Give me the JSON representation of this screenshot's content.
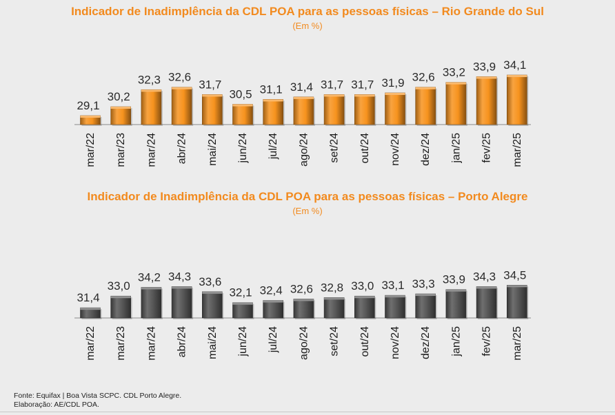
{
  "charts": [
    {
      "title": "Indicador de Inadimplência da CDL POA para as pessoas físicas – Rio Grande do Sul",
      "subtitle": "(Em %)"
    },
    {
      "title": "Indicador de Inadimplência da CDL POA para as pessoas físicas – Porto Alegre",
      "subtitle": "(Em %)"
    }
  ],
  "chart_data": [
    {
      "type": "bar",
      "title": "Indicador de Inadimplência da CDL POA para as pessoas físicas – Rio Grande do Sul",
      "subtitle": "(Em %)",
      "categories": [
        "mar/22",
        "mar/23",
        "mar/24",
        "abr/24",
        "mai/24",
        "jun/24",
        "jul/24",
        "ago/24",
        "set/24",
        "out/24",
        "nov/24",
        "dez/24",
        "jan/25",
        "fev/25",
        "mar/25"
      ],
      "values": [
        29.1,
        30.2,
        32.3,
        32.6,
        31.7,
        30.5,
        31.1,
        31.4,
        31.7,
        31.7,
        31.9,
        32.6,
        33.2,
        33.9,
        34.1
      ],
      "value_labels": [
        "29,1",
        "30,2",
        "32,3",
        "32,6",
        "31,7",
        "30,5",
        "31,1",
        "31,4",
        "31,7",
        "31,7",
        "31,9",
        "32,6",
        "33,2",
        "33,9",
        "34,1"
      ],
      "color": "#f7931e",
      "grid": false
    },
    {
      "type": "bar",
      "title": "Indicador de Inadimplência da CDL POA para as pessoas físicas – Porto Alegre",
      "subtitle": "(Em %)",
      "categories": [
        "mar/22",
        "mar/23",
        "mar/24",
        "abr/24",
        "mai/24",
        "jun/24",
        "jul/24",
        "ago/24",
        "set/24",
        "out/24",
        "nov/24",
        "dez/24",
        "jan/25",
        "fev/25",
        "mar/25"
      ],
      "values": [
        31.4,
        33.0,
        34.2,
        34.3,
        33.6,
        32.1,
        32.4,
        32.6,
        32.8,
        33.0,
        33.1,
        33.3,
        33.9,
        34.3,
        34.5
      ],
      "value_labels": [
        "31,4",
        "33,0",
        "34,2",
        "34,3",
        "33,6",
        "32,1",
        "32,4",
        "32,6",
        "32,8",
        "33,0",
        "33,1",
        "33,3",
        "33,9",
        "34,3",
        "34,5"
      ],
      "color": "#555555",
      "grid": false
    }
  ],
  "footer": {
    "source": "Fonte: Equifax | Boa Vista SCPC. CDL Porto Alegre.",
    "credit": "Elaboração: AE/CDL POA."
  }
}
